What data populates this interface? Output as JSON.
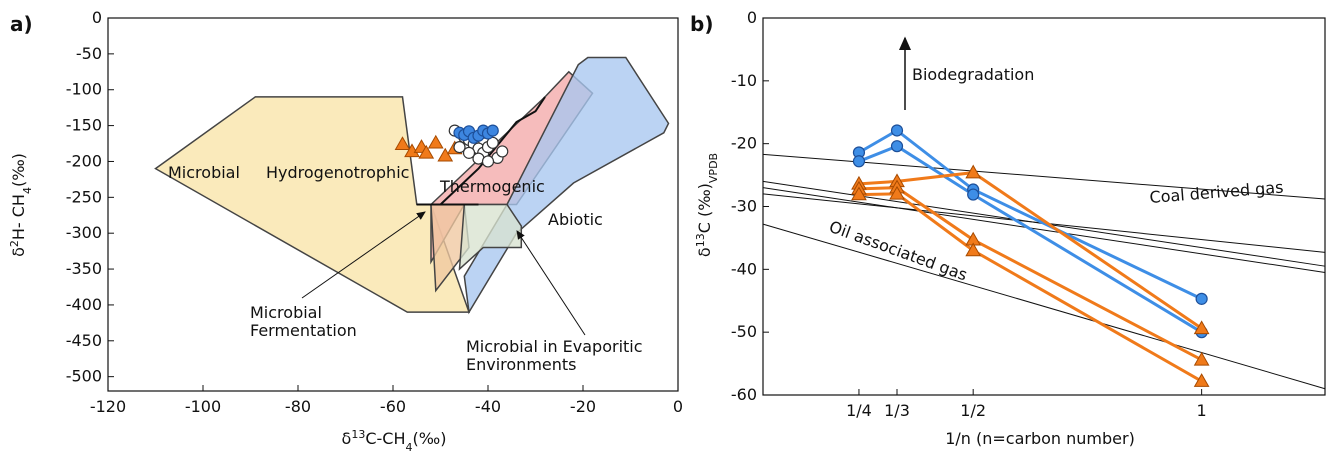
{
  "chart_data": [
    {
      "panel": "a)",
      "type": "scatter",
      "xlabel": "δ13C-CH4(‰)",
      "ylabel": "δ2H- CH4(‰)",
      "xlim": [
        -120,
        0
      ],
      "ylim": [
        -520,
        0
      ],
      "xticks": [
        "-120",
        "-100",
        "-80",
        "-60",
        "-40",
        "-20",
        "0"
      ],
      "yticks": [
        "0",
        "-50",
        "-100",
        "-150",
        "-200",
        "-250",
        "-300",
        "-350",
        "-400",
        "-450",
        "-500"
      ],
      "regions": [
        {
          "name": "Microbial Hydrogenotrophic",
          "labels": [
            "Microbial",
            "Hydrogenotrophic"
          ],
          "color": "#f8e4a8",
          "points": [
            [
              -110,
              -210
            ],
            [
              -89,
              -110
            ],
            [
              -58,
              -110
            ],
            [
              -55,
              -260
            ],
            [
              -52,
              -260
            ],
            [
              -44,
              -410
            ],
            [
              -57,
              -410
            ]
          ]
        },
        {
          "name": "Thermogenic",
          "label": "Thermogenic",
          "color": "#f4a9a9",
          "points": [
            [
              -52,
              -260
            ],
            [
              -28,
              -110
            ],
            [
              -23,
              -75
            ],
            [
              -18,
              -105
            ],
            [
              -34,
              -260
            ],
            [
              -45,
              -260
            ],
            [
              -52,
              -340
            ]
          ]
        },
        {
          "name": "Abiotic",
          "label": "Abiotic",
          "color": "#a8c6f0",
          "points": [
            [
              -36,
              -260
            ],
            [
              -21,
              -65
            ],
            [
              -19,
              -55
            ],
            [
              -11,
              -55
            ],
            [
              -2,
              -147
            ],
            [
              -3,
              -160
            ],
            [
              -22,
              -230
            ],
            [
              -34,
              -300
            ],
            [
              -44,
              -410
            ],
            [
              -45,
              -360
            ]
          ]
        },
        {
          "name": "Microbial Fermentation",
          "color": "#efc8a0",
          "points": [
            [
              -52,
              -260
            ],
            [
              -45,
              -260
            ],
            [
              -44,
              -320
            ],
            [
              -51,
              -380
            ]
          ]
        },
        {
          "name": "Microbial in Evaporitic Environments",
          "color": "#d9e3cf",
          "points": [
            [
              -45,
              -260
            ],
            [
              -36,
              -260
            ],
            [
              -33,
              -290
            ],
            [
              -33,
              -320
            ],
            [
              -41,
              -320
            ],
            [
              -46,
              -350
            ]
          ]
        }
      ],
      "outlines": [
        [
          [
            -55,
            -260
          ],
          [
            -50,
            -260
          ],
          [
            -42,
            -210
          ],
          [
            -34,
            -145
          ],
          [
            -30,
            -130
          ],
          [
            -28,
            -110
          ]
        ],
        [
          [
            -50,
            -260
          ],
          [
            -42,
            -260
          ]
        ]
      ],
      "annotations": [
        {
          "text_lines": [
            "Microbial",
            "Fermentation"
          ],
          "arrow_to": [
            -52,
            -290
          ]
        },
        {
          "text_lines": [
            "Microbial in Evaporitic",
            "Environments"
          ],
          "arrow_to": [
            -34,
            -290
          ]
        }
      ],
      "series": [
        {
          "marker": "triangle",
          "color": "#f07a1a",
          "points": [
            [
              -58,
              -176
            ],
            [
              -56,
              -186
            ],
            [
              -54,
              -180
            ],
            [
              -53,
              -188
            ],
            [
              -51,
              -174
            ],
            [
              -49,
              -192
            ],
            [
              -47,
              -182
            ]
          ]
        },
        {
          "marker": "circle-open",
          "color": "#ffffff",
          "points": [
            [
              -47,
              -157
            ],
            [
              -45,
              -166
            ],
            [
              -44,
              -170
            ],
            [
              -43,
              -176
            ],
            [
              -42,
              -182
            ],
            [
              -41,
              -188
            ],
            [
              -40,
              -180
            ],
            [
              -39,
              -174
            ],
            [
              -38,
              -195
            ],
            [
              -42,
              -196
            ],
            [
              -44,
              -188
            ],
            [
              -46,
              -180
            ],
            [
              -40,
              -200
            ],
            [
              -37,
              -186
            ],
            [
              -41,
              -160
            ]
          ]
        },
        {
          "marker": "circle",
          "color": "#3d86e0",
          "points": [
            [
              -46,
              -160
            ],
            [
              -45,
              -163
            ],
            [
              -44,
              -158
            ],
            [
              -43,
              -167
            ],
            [
              -42,
              -164
            ],
            [
              -41,
              -157
            ],
            [
              -40,
              -161
            ],
            [
              -39,
              -157
            ]
          ]
        }
      ]
    },
    {
      "panel": "b)",
      "type": "line",
      "xlabel": "1/n (n=carbon number)",
      "ylabel": "δ13C (‰)VPDB",
      "xlim": [
        0.04,
        1.27
      ],
      "ylim": [
        -60,
        0
      ],
      "xticks": [
        {
          "v": 0.25,
          "t": "1/4"
        },
        {
          "v": 0.3333,
          "t": "1/3"
        },
        {
          "v": 0.5,
          "t": "1/2"
        },
        {
          "v": 1,
          "t": "1"
        }
      ],
      "yticks": [
        "0",
        "-10",
        "-20",
        "-30",
        "-40",
        "-50",
        "-60"
      ],
      "reference_lines": [
        {
          "points": [
            [
              0.04,
              -21.7
            ],
            [
              1.27,
              -28.8
            ]
          ]
        },
        {
          "points": [
            [
              0.04,
              -26.0
            ],
            [
              1.27,
              -39.5
            ]
          ]
        },
        {
          "points": [
            [
              0.04,
              -27.0
            ],
            [
              1.27,
              -40.5
            ]
          ]
        },
        {
          "points": [
            [
              0.04,
              -28.0
            ],
            [
              1.27,
              -37.3
            ]
          ]
        },
        {
          "points": [
            [
              0.04,
              -32.8
            ],
            [
              1.27,
              -59.0
            ]
          ]
        }
      ],
      "line_labels": [
        "Coal derived gas",
        "Oil associated gas"
      ],
      "arrow_label": "Biodegradation",
      "series": [
        {
          "color": "#3e8ee6",
          "marker": "circle",
          "points": [
            [
              0.25,
              -21.4
            ],
            [
              0.3333,
              -17.9
            ],
            [
              0.5,
              -27.3
            ],
            [
              1,
              -44.7
            ]
          ]
        },
        {
          "color": "#3e8ee6",
          "marker": "circle",
          "points": [
            [
              0.25,
              -22.8
            ],
            [
              0.3333,
              -20.4
            ],
            [
              0.5,
              -28.1
            ],
            [
              1,
              -50.0
            ]
          ]
        },
        {
          "color": "#f07a1a",
          "marker": "triangle",
          "points": [
            [
              0.25,
              -26.4
            ],
            [
              0.3333,
              -26.0
            ],
            [
              0.5,
              -24.6
            ],
            [
              1,
              -49.4
            ]
          ]
        },
        {
          "color": "#f07a1a",
          "marker": "triangle",
          "points": [
            [
              0.25,
              -27.2
            ],
            [
              0.3333,
              -27.0
            ],
            [
              0.5,
              -35.3
            ],
            [
              1,
              -54.4
            ]
          ]
        },
        {
          "color": "#f07a1a",
          "marker": "triangle",
          "points": [
            [
              0.25,
              -28.1
            ],
            [
              0.3333,
              -28.0
            ],
            [
              0.5,
              -37.0
            ],
            [
              1,
              -57.8
            ]
          ]
        }
      ]
    }
  ]
}
